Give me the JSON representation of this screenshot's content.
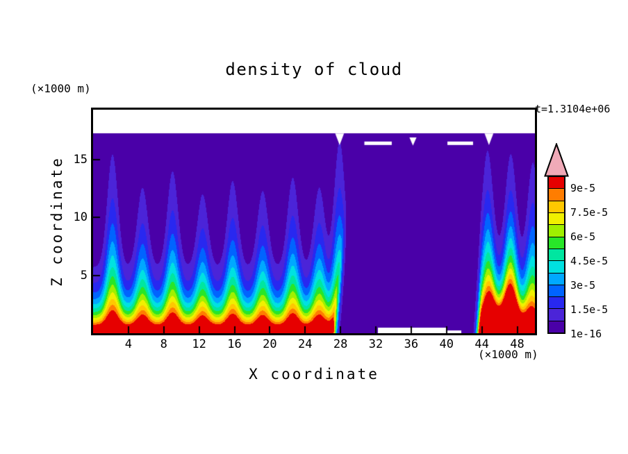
{
  "chart_data": {
    "type": "heatmap",
    "style": "filled-contour",
    "title": "density of cloud",
    "time_label": "t=1.3104e+06",
    "xlabel": "X coordinate",
    "ylabel": "Z coordinate",
    "x_unit": "(×1000 m)",
    "y_unit": "(×1000 m)",
    "xlim": [
      0,
      50
    ],
    "ylim": [
      0,
      19.3
    ],
    "x_ticks": [
      4,
      8,
      12,
      16,
      20,
      24,
      28,
      32,
      36,
      40,
      44,
      48
    ],
    "y_ticks": [
      5,
      10,
      15
    ],
    "colorbar": {
      "levels": [
        1e-16,
        7.5e-06,
        1.5e-05,
        2.25e-05,
        3e-05,
        3.75e-05,
        4.5e-05,
        5.25e-05,
        6e-05,
        6.75e-05,
        7.5e-05,
        8.25e-05,
        9e-05
      ],
      "colors": [
        "#4a00a8",
        "#4b24d8",
        "#2828f0",
        "#0064ff",
        "#00a8ff",
        "#00e1e1",
        "#00e6a0",
        "#28e628",
        "#a0f000",
        "#f0f000",
        "#ffc800",
        "#ff7d00",
        "#e60000"
      ],
      "overflow_color": "#f0aab8",
      "under_color": "#ffffff",
      "labels": [
        {
          "text": "9e-5",
          "boundary": 12
        },
        {
          "text": "7.5e-5",
          "boundary": 10
        },
        {
          "text": "6e-5",
          "boundary": 8
        },
        {
          "text": "4.5e-5",
          "boundary": 6
        },
        {
          "text": "3e-5",
          "boundary": 4
        },
        {
          "text": "1.5e-5",
          "boundary": 2
        },
        {
          "text": "1e-16",
          "boundary": 0
        }
      ]
    },
    "field_model": {
      "surface_value": 0.00013,
      "scale_height": 2.0,
      "plume_width": 0.85,
      "cloud_top": 17.25,
      "plumes": [
        {
          "x": 2.2,
          "amp": 1.7
        },
        {
          "x": 5.6,
          "amp": 1.2
        },
        {
          "x": 9.0,
          "amp": 1.45
        },
        {
          "x": 12.4,
          "amp": 1.1
        },
        {
          "x": 15.8,
          "amp": 1.3
        },
        {
          "x": 19.2,
          "amp": 1.15
        },
        {
          "x": 22.6,
          "amp": 1.35
        },
        {
          "x": 25.6,
          "amp": 1.2
        },
        {
          "x": 27.9,
          "amp": 1.9
        },
        {
          "x": 44.6,
          "amp": 1.45
        },
        {
          "x": 47.3,
          "amp": 1.25
        },
        {
          "x": 49.8,
          "amp": 1.5
        }
      ],
      "surface_bumps": [
        {
          "x": 46.5,
          "amp": 0.9,
          "w": 2.2
        }
      ],
      "gap": {
        "left_start": 26.9,
        "left_tilt": 0.15,
        "left_width": 3.6,
        "right_start": 40.6,
        "right_tilt": 0.0,
        "right_width": 3.4,
        "log_suppress": -6.5
      },
      "ground_voids": [
        {
          "x0": 32.2,
          "x1": 39.9,
          "h": 0.5
        },
        {
          "x0": 39.9,
          "x1": 41.7,
          "h": 0.25
        }
      ],
      "white_markers": {
        "triangles": [
          {
            "x": 27.9,
            "z": 17.25,
            "w": 1.0,
            "h": 1.0
          },
          {
            "x": 36.2,
            "z": 16.9,
            "w": 0.8,
            "h": 0.7
          },
          {
            "x": 44.8,
            "z": 17.25,
            "w": 1.0,
            "h": 1.0
          }
        ],
        "dashes": [
          {
            "x0": 30.7,
            "x1": 33.8,
            "z": 16.55,
            "t": 0.3
          },
          {
            "x0": 40.1,
            "x1": 43.0,
            "z": 16.55,
            "t": 0.3
          }
        ]
      }
    }
  }
}
